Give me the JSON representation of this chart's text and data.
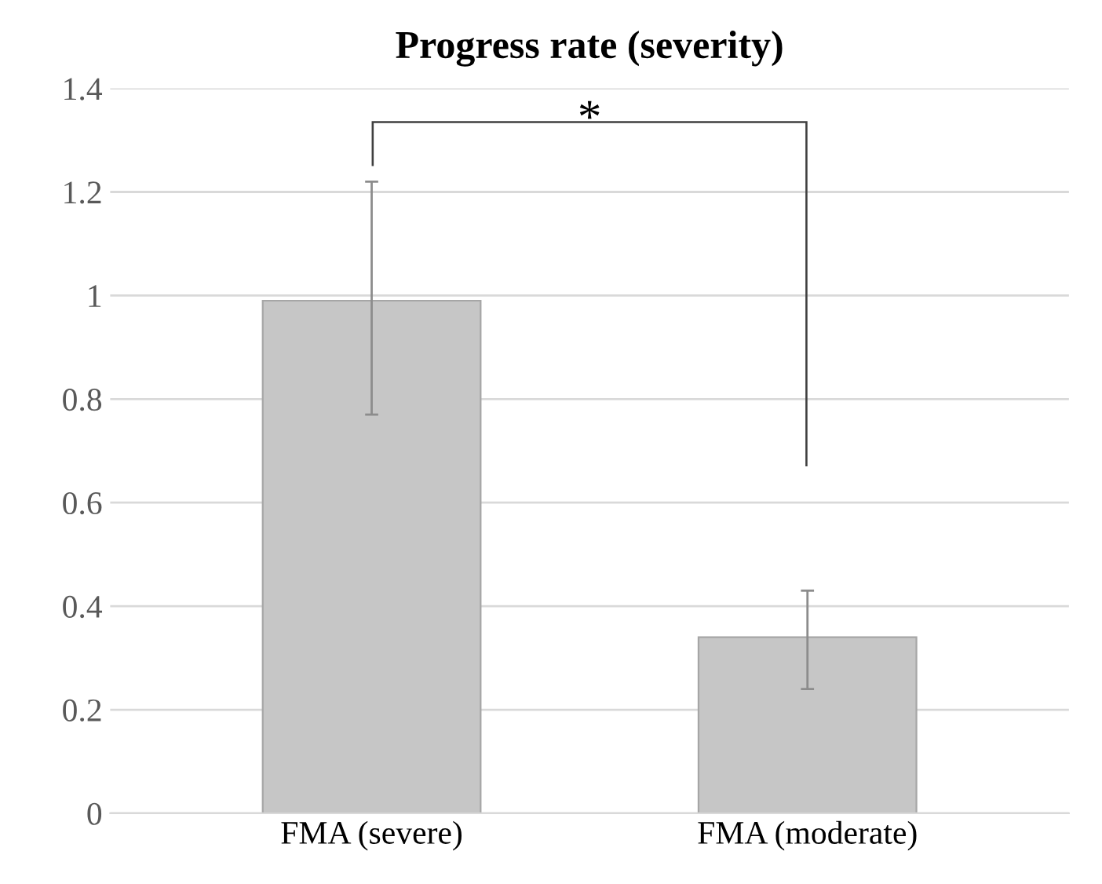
{
  "chart_data": {
    "type": "bar",
    "title": "Progress rate (severity)",
    "categories": [
      "FMA (severe)",
      "FMA (moderate)"
    ],
    "values": [
      0.99,
      0.34
    ],
    "errors": [
      [
        0.77,
        1.22
      ],
      [
        0.24,
        0.43
      ]
    ],
    "color": "#c6c6c6",
    "ylim": [
      0,
      1.4
    ],
    "yticks": [
      0,
      0.2,
      0.4,
      0.6,
      0.8,
      1,
      1.2,
      1.4
    ],
    "grid": "y",
    "legend": false,
    "annotations": [
      "*"
    ]
  }
}
